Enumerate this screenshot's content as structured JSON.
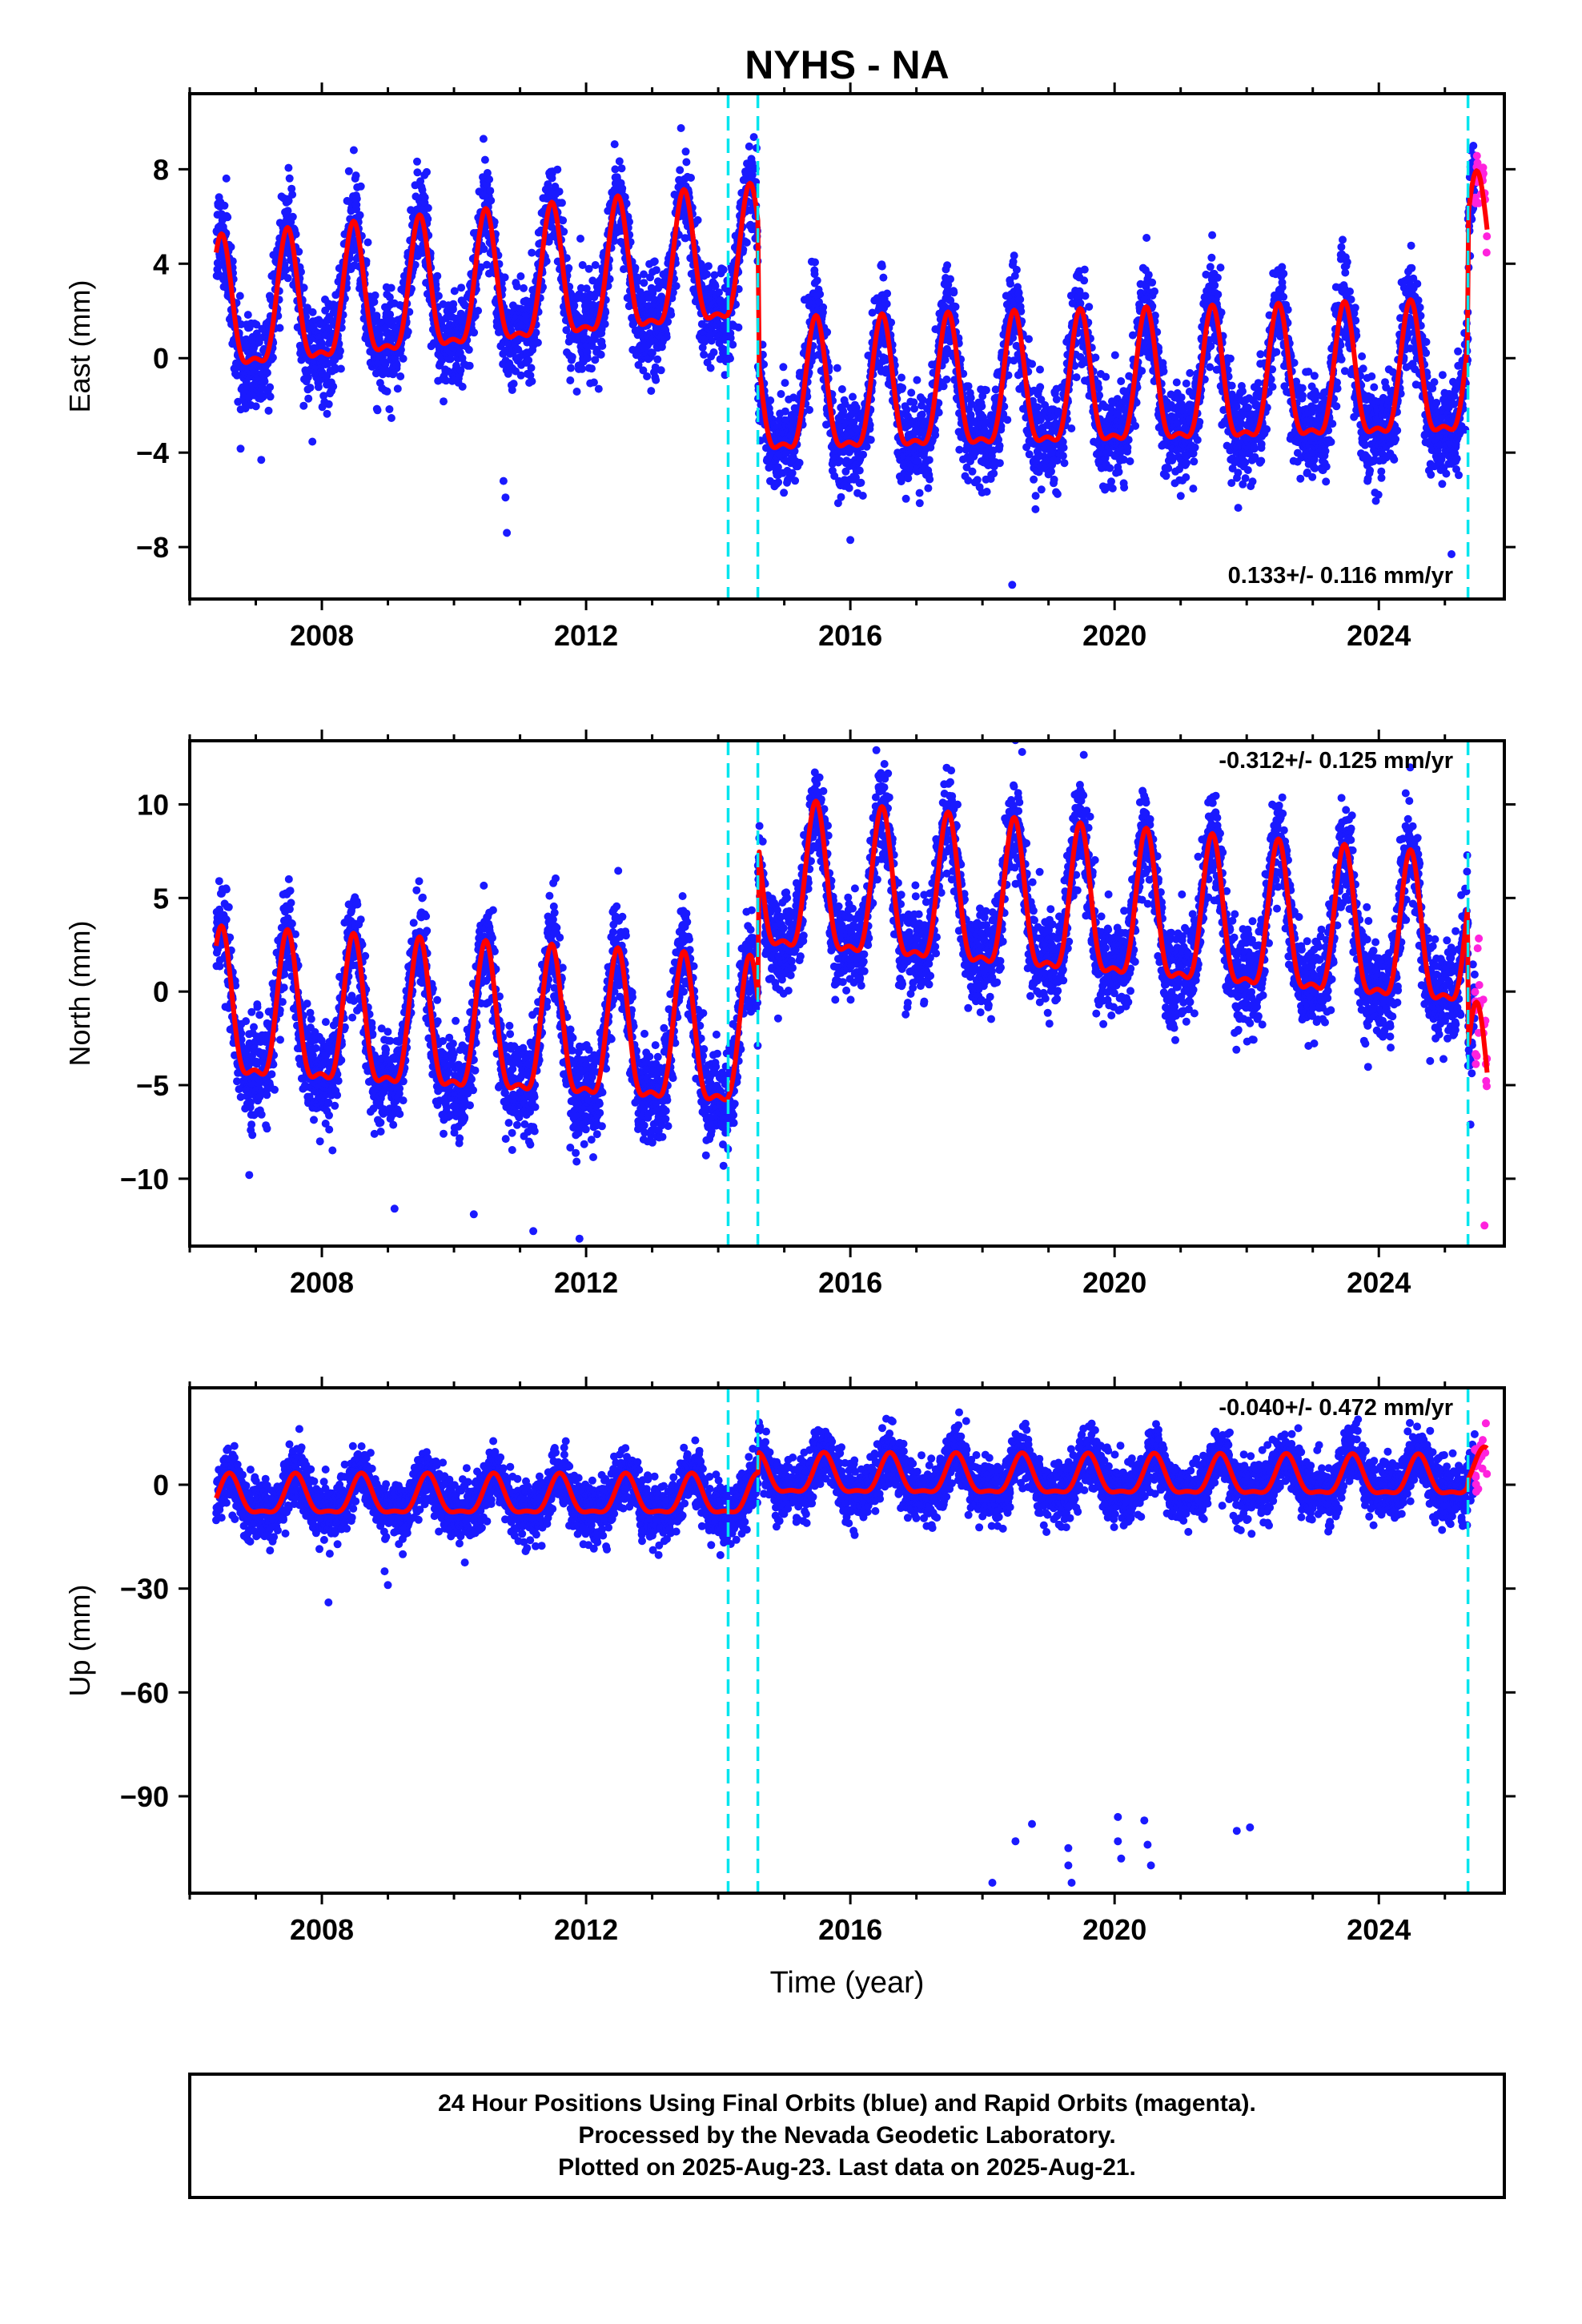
{
  "title": "NYHS - NA",
  "x_axis_label": "Time (year)",
  "colors": {
    "final_orbits": "#1a1aff",
    "rapid_orbits": "#ff22dd",
    "model": "#ff0000",
    "offsets": "#00e5ee",
    "frame": "#000000"
  },
  "caption": {
    "line1": "24 Hour Positions Using Final Orbits (blue) and Rapid Orbits (magenta).",
    "line2": "Processed by the Nevada Geodetic Laboratory.",
    "line3": "Plotted on 2025-Aug-23. Last data on 2025-Aug-21."
  },
  "chart_data": [
    {
      "type": "scatter",
      "component": "East",
      "ylabel": "East (mm)",
      "xlim": [
        2006.0,
        2025.9
      ],
      "ylim": [
        -10.2,
        11.2
      ],
      "yticks": [
        8,
        4,
        0,
        -4,
        -8
      ],
      "yticklabels": [
        "8",
        "4",
        "0",
        "−4",
        "−8"
      ],
      "xticks": [
        2008,
        2012,
        2016,
        2020,
        2024
      ],
      "xticklabels": [
        "2008",
        "2012",
        "2016",
        "2020",
        "2024"
      ],
      "data_start": 2006.4,
      "data_end": 2025.64,
      "rapid_start": 2025.45,
      "offset_epochs": [
        2014.15,
        2014.6,
        2025.35
      ],
      "rate_text": "0.133+/- 0.116 mm/yr",
      "segments": [
        {
          "start": 2006.4,
          "end": 2014.6,
          "baseline_start": 1.6,
          "baseline_end": 3.8
        },
        {
          "start": 2014.6,
          "end": 2025.35,
          "baseline_start": -1.9,
          "baseline_end": -1.1
        },
        {
          "start": 2025.35,
          "end": 2025.64,
          "baseline_start": 4.2,
          "baseline_end": 4.4
        }
      ],
      "seasonal_amplitude": 2.7,
      "seasonal_peak_month_fraction": 0.48,
      "scatter_sigma": 1.0,
      "outliers": [
        [
          2010.75,
          -5.2
        ],
        [
          2010.78,
          -5.9
        ],
        [
          2010.8,
          -7.4
        ],
        [
          2018.45,
          -9.6
        ],
        [
          2016.0,
          -7.7
        ],
        [
          2025.1,
          -8.3
        ]
      ]
    },
    {
      "type": "scatter",
      "component": "North",
      "ylabel": "North (mm)",
      "xlim": [
        2006.0,
        2025.9
      ],
      "ylim": [
        -13.6,
        13.4
      ],
      "yticks": [
        10,
        5,
        0,
        -5,
        -10
      ],
      "yticklabels": [
        "10",
        "5",
        "0",
        "−5",
        "−10"
      ],
      "xticks": [
        2008,
        2012,
        2016,
        2020,
        2024
      ],
      "xticklabels": [
        "2008",
        "2012",
        "2016",
        "2020",
        "2024"
      ],
      "data_start": 2006.4,
      "data_end": 2025.64,
      "rapid_start": 2025.45,
      "offset_epochs": [
        2014.15,
        2014.6,
        2025.35
      ],
      "rate_text": "-0.312+/- 0.125 mm/yr",
      "segments": [
        {
          "start": 2006.4,
          "end": 2014.6,
          "baseline_start": -1.6,
          "baseline_end": -3.2
        },
        {
          "start": 2014.6,
          "end": 2025.35,
          "baseline_start": 5.3,
          "baseline_end": 2.2
        },
        {
          "start": 2025.35,
          "end": 2025.64,
          "baseline_start": -5.6,
          "baseline_end": -5.8
        }
      ],
      "seasonal_amplitude": 3.8,
      "seasonal_peak_month_fraction": 0.48,
      "scatter_sigma": 1.3,
      "outliers": [
        [
          2006.9,
          -9.8
        ],
        [
          2007.5,
          6.0
        ],
        [
          2009.1,
          -11.6
        ],
        [
          2010.3,
          -11.9
        ],
        [
          2011.2,
          -12.8
        ],
        [
          2011.9,
          -13.2
        ],
        [
          2018.6,
          12.8
        ],
        [
          2025.6,
          -12.5
        ]
      ]
    },
    {
      "type": "scatter",
      "component": "Up",
      "ylabel": "Up (mm)",
      "xlim": [
        2006.0,
        2025.9
      ],
      "ylim": [
        -118,
        28
      ],
      "yticks": [
        0,
        -30,
        -60,
        -90
      ],
      "yticklabels": [
        "0",
        "−30",
        "−60",
        "−90"
      ],
      "xticks": [
        2008,
        2012,
        2016,
        2020,
        2024
      ],
      "xticklabels": [
        "2008",
        "2012",
        "2016",
        "2020",
        "2024"
      ],
      "data_start": 2006.4,
      "data_end": 2025.64,
      "rapid_start": 2025.45,
      "offset_epochs": [
        2014.15,
        2014.6,
        2025.35
      ],
      "rate_text": "-0.040+/- 0.472 mm/yr",
      "segments": [
        {
          "start": 2006.4,
          "end": 2014.6,
          "baseline_start": -4.0,
          "baseline_end": -4.0
        },
        {
          "start": 2014.6,
          "end": 2025.35,
          "baseline_start": 2.0,
          "baseline_end": 1.5
        },
        {
          "start": 2025.35,
          "end": 2025.64,
          "baseline_start": 3.5,
          "baseline_end": 3.5
        }
      ],
      "seasonal_amplitude": 5.5,
      "seasonal_peak_month_fraction": 0.6,
      "scatter_sigma": 4.2,
      "outliers": [
        [
          2008.1,
          -34
        ],
        [
          2008.95,
          -25
        ],
        [
          2009.0,
          -29
        ],
        [
          2018.15,
          -115
        ],
        [
          2018.5,
          -103
        ],
        [
          2018.75,
          -98
        ],
        [
          2019.3,
          -105
        ],
        [
          2019.3,
          -110
        ],
        [
          2019.35,
          -115
        ],
        [
          2020.05,
          -96
        ],
        [
          2020.05,
          -103
        ],
        [
          2020.1,
          -108
        ],
        [
          2020.45,
          -97
        ],
        [
          2020.5,
          -104
        ],
        [
          2020.55,
          -110
        ],
        [
          2021.85,
          -100
        ],
        [
          2022.05,
          -99
        ]
      ]
    }
  ]
}
